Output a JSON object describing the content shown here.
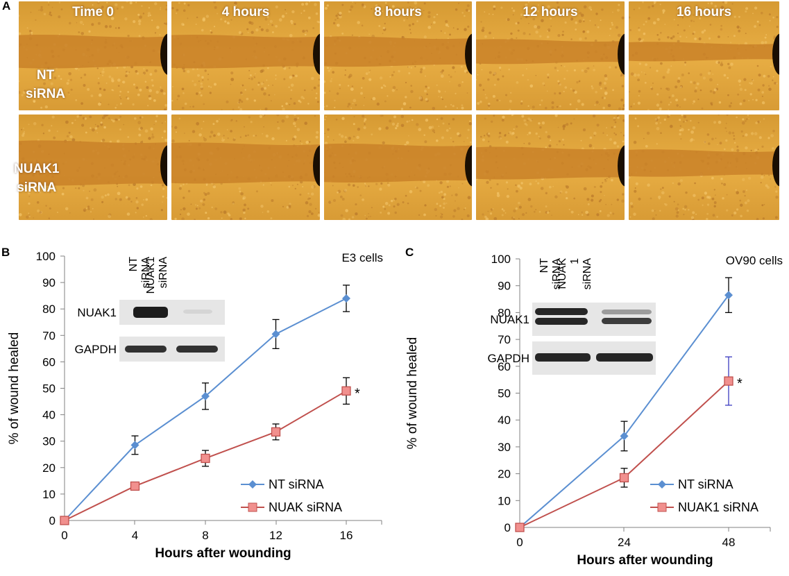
{
  "panel_a": {
    "letter": "A",
    "time_labels": [
      "Time 0",
      "4 hours",
      "8 hours",
      "12 hours",
      "16 hours"
    ],
    "row_labels": [
      {
        "line1": "NT",
        "line2": "siRNA"
      },
      {
        "line1": "NUAK1",
        "line2": "siRNA"
      }
    ],
    "colors": {
      "tissue": "#E0A437",
      "gap": "#D0842A",
      "border": "#ffffff"
    }
  },
  "chart_data": [
    {
      "panel": "B",
      "type": "line",
      "title": "E3 cells",
      "xlabel": "Hours after wounding",
      "ylabel": "% of wound healed",
      "x": [
        0,
        4,
        8,
        12,
        16
      ],
      "xticks": [
        "0",
        "4",
        "8",
        "12",
        "16"
      ],
      "yticks": [
        "0",
        "10",
        "20",
        "30",
        "40",
        "50",
        "60",
        "70",
        "80",
        "90",
        "100"
      ],
      "ylim": [
        0,
        100
      ],
      "series": [
        {
          "name": "NT siRNA",
          "color": "#5B8FD1",
          "marker": "diamond",
          "values": [
            0,
            28.5,
            47,
            70.5,
            84
          ],
          "errors": [
            0,
            3.5,
            5,
            5.5,
            5
          ]
        },
        {
          "name": "NUAK siRNA",
          "color": "#C0504D",
          "marker": "square",
          "values": [
            0,
            13,
            23.5,
            33.5,
            49
          ],
          "errors": [
            0,
            1.5,
            3,
            3,
            5
          ]
        }
      ],
      "annotation": "*",
      "legend_position": "bottom-right",
      "inset": {
        "lanes": [
          {
            "line1": "NT",
            "line2": "siRNA"
          },
          {
            "line1": "NUAK1",
            "line2": "siRNA"
          }
        ],
        "rows": [
          "NUAK1",
          "GAPDH"
        ]
      }
    },
    {
      "panel": "C",
      "type": "line",
      "title": "OV90 cells",
      "xlabel": "Hours after wounding",
      "ylabel": "% of wound healed",
      "x": [
        0,
        24,
        48
      ],
      "xticks": [
        "0",
        "24",
        "48"
      ],
      "yticks": [
        "0",
        "10",
        "20",
        "30",
        "40",
        "50",
        "60",
        "70",
        "80",
        "90",
        "100"
      ],
      "ylim": [
        0,
        100
      ],
      "series": [
        {
          "name": "NT siRNA",
          "color": "#5B8FD1",
          "marker": "diamond",
          "values": [
            0,
            34,
            86.5
          ],
          "errors": [
            0,
            5.5,
            6.5
          ]
        },
        {
          "name": "NUAK1 siRNA",
          "color": "#C0504D",
          "marker": "square",
          "values": [
            0,
            18.5,
            54.5
          ],
          "errors": [
            0,
            3.5,
            9
          ]
        }
      ],
      "annotation": "*",
      "legend_position": "bottom-right",
      "inset": {
        "lanes": [
          {
            "line1": "NT",
            "line2": "siRNA"
          },
          {
            "line1": "NUAK",
            "line2": "1",
            "line3": "siRNA"
          }
        ],
        "rows": [
          "NUAK1",
          "GAPDH"
        ]
      }
    }
  ]
}
